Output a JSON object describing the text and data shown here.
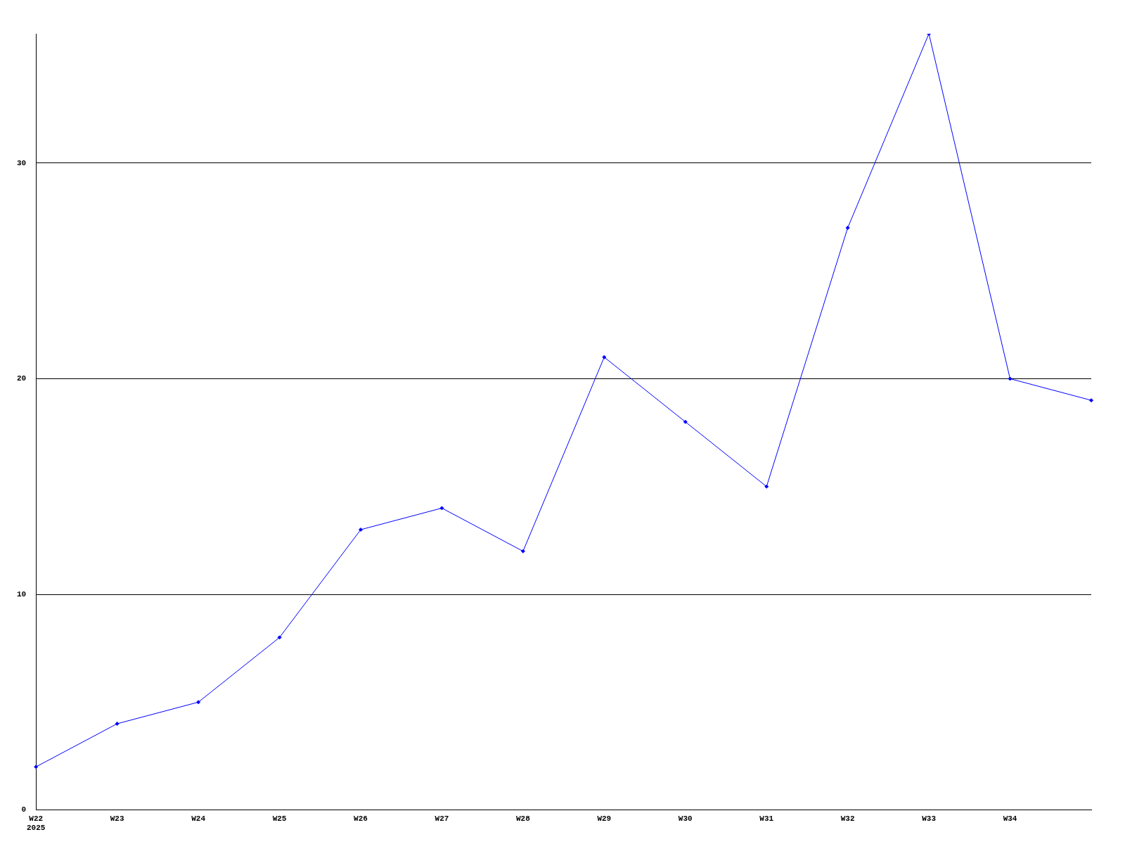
{
  "chart_data": {
    "type": "line",
    "categories": [
      "W22\n2025",
      "W23",
      "W24",
      "W25",
      "W26",
      "W27",
      "W28",
      "W29",
      "W30",
      "W31",
      "W32",
      "W33",
      "W34",
      null
    ],
    "series": [
      {
        "color": "#0000ff",
        "values": [
          2,
          4,
          5,
          8,
          13,
          14,
          12,
          21,
          18,
          15,
          27,
          36,
          20,
          19
        ]
      }
    ],
    "ylim": [
      0,
      36
    ],
    "yticks": [
      0,
      10,
      20,
      30
    ],
    "grid": "y",
    "legend": false,
    "marker": "diamond",
    "line_style": "solid"
  }
}
